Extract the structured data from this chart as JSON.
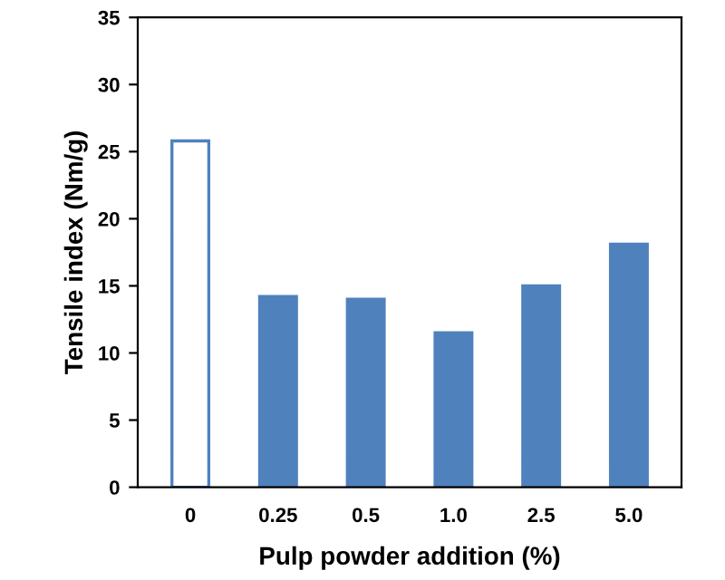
{
  "chart_data": {
    "type": "bar",
    "xlabel": "Pulp powder addition (%)",
    "ylabel": "Tensile index (Nm/g)",
    "categories": [
      "0",
      "0.25",
      "0.5",
      "1.0",
      "2.5",
      "5.0"
    ],
    "series": [
      {
        "color": "#4f81bd",
        "colors": [
          "#ffffff",
          "#4f81bd",
          "#4f81bd",
          "#4f81bd",
          "#4f81bd",
          "#4f81bd"
        ],
        "values": [
          25.8,
          14.2,
          14.0,
          11.5,
          15.0,
          18.1
        ]
      }
    ],
    "ylim": [
      0,
      35
    ],
    "yticks": [
      0,
      5,
      10,
      15,
      20,
      25,
      30,
      35
    ],
    "grid": false,
    "legend": false
  }
}
